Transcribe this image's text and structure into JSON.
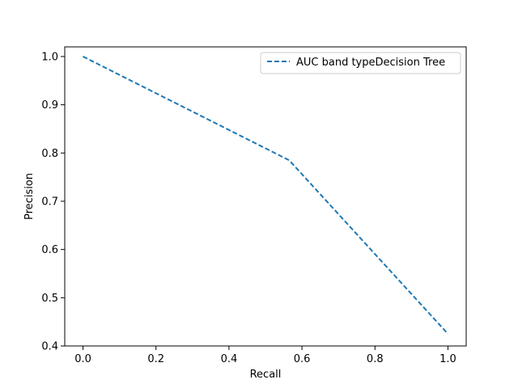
{
  "chart_data": {
    "type": "line",
    "title": "",
    "xlabel": "Recall",
    "ylabel": "Precision",
    "xlim": [
      -0.05,
      1.05
    ],
    "ylim": [
      0.4,
      1.02
    ],
    "xticks": [
      0.0,
      0.2,
      0.4,
      0.6,
      0.8,
      1.0
    ],
    "xtick_labels": [
      "0.0",
      "0.2",
      "0.4",
      "0.6",
      "0.8",
      "1.0"
    ],
    "yticks": [
      0.4,
      0.5,
      0.6,
      0.7,
      0.8,
      0.9,
      1.0
    ],
    "ytick_labels": [
      "0.4",
      "0.5",
      "0.6",
      "0.7",
      "0.8",
      "0.9",
      "1.0"
    ],
    "grid": false,
    "legend_position": "top-right",
    "series": [
      {
        "name": "AUC band typeDecision Tree",
        "color": "#1f77b4",
        "line_style": "dashed",
        "x": [
          0.0,
          0.565,
          1.0
        ],
        "y": [
          1.0,
          0.785,
          0.425
        ]
      }
    ]
  }
}
